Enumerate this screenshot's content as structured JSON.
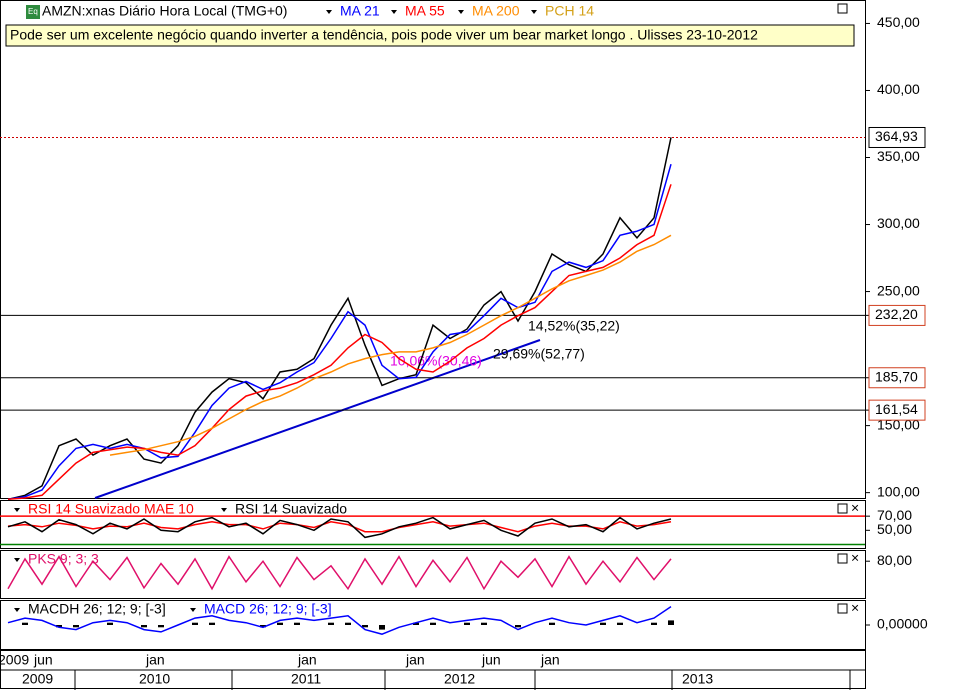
{
  "header": {
    "title": "AMZN:xnas Diário Hora Local (TMG+0)",
    "extra_legend": {
      "name": "PCH 14",
      "color": "#d4a017"
    }
  },
  "note": "Pode ser um excelente negócio quando inverter a tendência, pois pode viver um bear market longo . Ulisses 23-10-2012",
  "chart_data": [
    {
      "type": "line",
      "ylim": [
        96,
        466
      ],
      "yticks": [
        {
          "value": 100,
          "label": "100,00"
        },
        {
          "value": 150,
          "label": "150,00"
        },
        {
          "value": 250,
          "label": "250,00"
        },
        {
          "value": 300,
          "label": "300,00"
        },
        {
          "value": 350,
          "label": "350,00"
        },
        {
          "value": 400,
          "label": "400,00"
        },
        {
          "value": 450,
          "label": "450,00"
        }
      ],
      "hlines": [
        {
          "value": 232.2,
          "label": "232,20"
        },
        {
          "value": 185.7,
          "label": "185,70"
        },
        {
          "value": 161.54,
          "label": "161,54"
        }
      ],
      "last": {
        "value": 364.93,
        "label": "364,93",
        "color": "#cc0000"
      },
      "annotations": [
        {
          "text": "14,52%(35,22)",
          "color": "#000000"
        },
        {
          "text": "29,69%(52,77)",
          "color": "#000000"
        },
        {
          "text": "10,06%(30,46)",
          "color": "#e000e0"
        }
      ],
      "series": [
        {
          "color": "#000000",
          "values": [
            95,
            98,
            105,
            135,
            140,
            128,
            135,
            140,
            125,
            122,
            135,
            160,
            175,
            185,
            182,
            170,
            190,
            192,
            200,
            225,
            245,
            210,
            180,
            185,
            188,
            225,
            215,
            222,
            240,
            250,
            228,
            250,
            278,
            270,
            265,
            278,
            305,
            290,
            305,
            365
          ]
        },
        {
          "name": "MA 21",
          "color": "#0000ff",
          "values": [
            95,
            97,
            102,
            120,
            133,
            136,
            133,
            136,
            133,
            126,
            127,
            145,
            165,
            178,
            183,
            177,
            182,
            190,
            197,
            215,
            235,
            225,
            195,
            185,
            186,
            205,
            218,
            220,
            232,
            245,
            238,
            242,
            265,
            272,
            268,
            273,
            292,
            295,
            300,
            345
          ]
        },
        {
          "name": "MA 55",
          "color": "#ff0000",
          "values": [
            95,
            96,
            98,
            110,
            122,
            130,
            132,
            134,
            133,
            130,
            128,
            135,
            148,
            162,
            172,
            176,
            178,
            182,
            188,
            195,
            208,
            218,
            212,
            200,
            192,
            190,
            198,
            208,
            215,
            225,
            232,
            238,
            250,
            262,
            265,
            268,
            275,
            285,
            292,
            330
          ]
        },
        {
          "name": "MA 200",
          "color": "#ff8c00",
          "values": [
            null,
            null,
            null,
            null,
            null,
            null,
            128,
            130,
            132,
            135,
            138,
            142,
            148,
            155,
            162,
            168,
            172,
            178,
            185,
            190,
            196,
            200,
            203,
            205,
            205,
            208,
            212,
            218,
            225,
            232,
            238,
            245,
            252,
            258,
            262,
            266,
            272,
            280,
            285,
            292
          ]
        }
      ]
    },
    {
      "type": "line",
      "ylim": [
        25,
        90
      ],
      "yticks": [
        {
          "value": 70,
          "label": "70,00"
        },
        {
          "value": 50,
          "label": "50,00"
        }
      ],
      "upper": 70,
      "lower": 30,
      "series": [
        {
          "name": "RSI 14 Suavizado MAE 10",
          "color": "#ff0000",
          "values": [
            56,
            58,
            55,
            60,
            57,
            52,
            56,
            55,
            60,
            54,
            52,
            58,
            62,
            58,
            58,
            52,
            60,
            58,
            54,
            62,
            58,
            48,
            48,
            54,
            58,
            62,
            56,
            58,
            60,
            54,
            48,
            56,
            60,
            56,
            56,
            52,
            62,
            56,
            58,
            62
          ]
        },
        {
          "name": "RSI 14 Suavizado",
          "color": "#000000",
          "values": [
            55,
            62,
            48,
            65,
            58,
            45,
            60,
            52,
            66,
            50,
            48,
            62,
            68,
            55,
            60,
            45,
            64,
            58,
            50,
            66,
            62,
            40,
            45,
            55,
            60,
            68,
            52,
            58,
            64,
            50,
            42,
            60,
            66,
            55,
            58,
            48,
            68,
            52,
            60,
            66
          ]
        }
      ]
    },
    {
      "type": "line",
      "ylim": [
        0,
        100
      ],
      "yticks": [
        {
          "value": 80,
          "label": "80,00"
        }
      ],
      "series": [
        {
          "name": "PKS 9; 3; 3",
          "color": "#e0106a",
          "values": [
            20,
            85,
            30,
            90,
            25,
            80,
            40,
            88,
            22,
            75,
            30,
            85,
            20,
            90,
            35,
            80,
            25,
            88,
            40,
            70,
            20,
            85,
            30,
            90,
            25,
            82,
            35,
            88,
            20,
            80,
            45,
            85,
            25,
            90,
            30,
            80,
            35,
            88,
            40,
            85
          ]
        }
      ]
    },
    {
      "type": "line",
      "ylim": [
        -10,
        10
      ],
      "yticks": [
        {
          "value": 0,
          "label": "0,00000"
        }
      ],
      "series": [
        {
          "name": "MACDH 26; 12; 9; [-3]",
          "color": "#000000",
          "bars": true,
          "values": [
            0,
            1,
            0,
            -1,
            -1,
            0,
            1,
            0,
            -1,
            -1,
            0,
            1,
            1,
            0,
            0,
            -1,
            1,
            1,
            0,
            1,
            1,
            -1,
            -2,
            0,
            1,
            1,
            0,
            1,
            1,
            0,
            -1,
            0,
            1,
            0,
            0,
            1,
            1,
            0,
            1,
            2
          ]
        },
        {
          "name": "MACD 26; 12; 9; [-3]",
          "color": "#0000ff",
          "values": [
            1,
            3,
            2,
            -1,
            -2,
            1,
            2,
            1,
            -2,
            -3,
            0,
            3,
            4,
            2,
            1,
            -1,
            2,
            3,
            2,
            3,
            4,
            -2,
            -4,
            -1,
            1,
            3,
            1,
            2,
            3,
            2,
            -2,
            1,
            3,
            1,
            0,
            2,
            4,
            1,
            3,
            8
          ]
        }
      ]
    }
  ],
  "time_axis": {
    "months": [
      "2009",
      "jun",
      "jan",
      "jan",
      "jan",
      "jun",
      "jan"
    ],
    "years": [
      "2009",
      "2010",
      "2011",
      "2012",
      "2013"
    ]
  }
}
